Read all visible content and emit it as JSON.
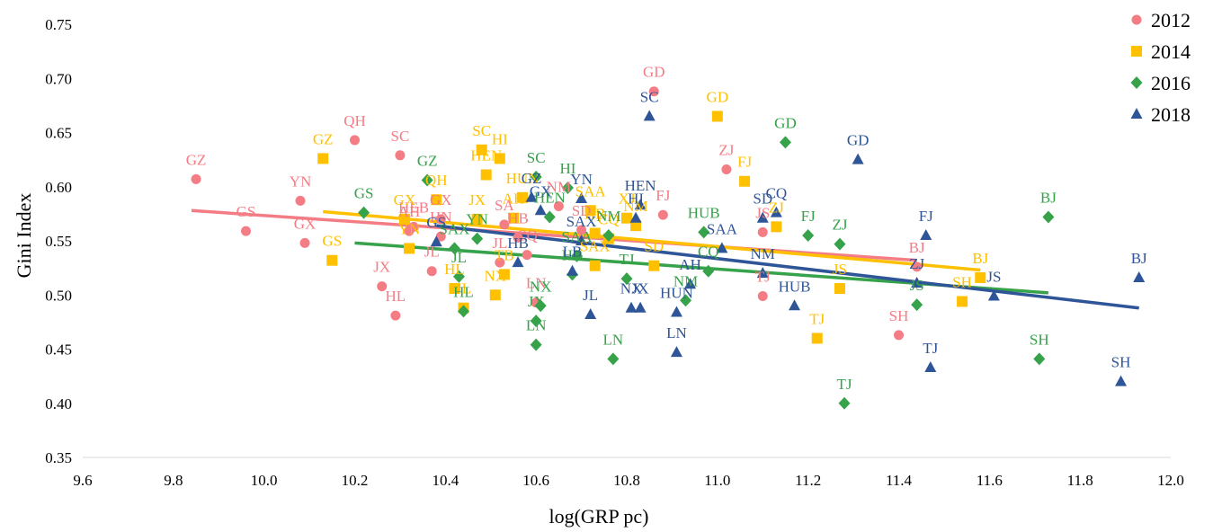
{
  "chart_data": {
    "type": "scatter",
    "xlabel": "log(GRP pc)",
    "ylabel": "Gini Index",
    "xlim": [
      9.6,
      12.0
    ],
    "ylim": [
      0.35,
      0.75
    ],
    "xticks": [
      "9.6",
      "9.8",
      "10.0",
      "10.2",
      "10.4",
      "10.6",
      "10.8",
      "11.0",
      "11.2",
      "11.4",
      "11.6",
      "11.8",
      "12.0"
    ],
    "yticks": [
      "0.35",
      "0.40",
      "0.45",
      "0.50",
      "0.55",
      "0.60",
      "0.65",
      "0.70",
      "0.75"
    ],
    "legend_position": "top-right",
    "series": [
      {
        "name": "2012",
        "color": "#f47c85",
        "marker": "circle",
        "trendline": {
          "x": [
            9.84,
            11.44
          ],
          "y": [
            0.578,
            0.532
          ]
        },
        "points": [
          {
            "label": "GZ",
            "x": 9.85,
            "y": 0.607
          },
          {
            "label": "GS",
            "x": 9.96,
            "y": 0.559
          },
          {
            "label": "YN",
            "x": 10.08,
            "y": 0.587
          },
          {
            "label": "GX",
            "x": 10.09,
            "y": 0.548
          },
          {
            "label": "QH",
            "x": 10.2,
            "y": 0.643
          },
          {
            "label": "SC",
            "x": 10.3,
            "y": 0.629
          },
          {
            "label": "JX",
            "x": 10.26,
            "y": 0.508
          },
          {
            "label": "HL",
            "x": 10.29,
            "y": 0.481
          },
          {
            "label": "HEB",
            "x": 10.33,
            "y": 0.563
          },
          {
            "label": "AH",
            "x": 10.32,
            "y": 0.559
          },
          {
            "label": "GX",
            "x": 10.39,
            "y": 0.57
          },
          {
            "label": "JL",
            "x": 10.37,
            "y": 0.522
          },
          {
            "label": "HN",
            "x": 10.39,
            "y": 0.554
          },
          {
            "label": "SA",
            "x": 10.53,
            "y": 0.565
          },
          {
            "label": "HB",
            "x": 10.56,
            "y": 0.553
          },
          {
            "label": "JL",
            "x": 10.52,
            "y": 0.53
          },
          {
            "label": "CQ",
            "x": 10.58,
            "y": 0.537
          },
          {
            "label": "LN",
            "x": 10.6,
            "y": 0.493
          },
          {
            "label": "NM",
            "x": 10.65,
            "y": 0.582
          },
          {
            "label": "SD",
            "x": 10.7,
            "y": 0.56
          },
          {
            "label": "GD",
            "x": 10.86,
            "y": 0.688
          },
          {
            "label": "FJ",
            "x": 10.88,
            "y": 0.574
          },
          {
            "label": "ZJ",
            "x": 11.02,
            "y": 0.616
          },
          {
            "label": "JS",
            "x": 11.1,
            "y": 0.558
          },
          {
            "label": "TJ",
            "x": 11.1,
            "y": 0.499
          },
          {
            "label": "BJ",
            "x": 11.44,
            "y": 0.526
          },
          {
            "label": "SH",
            "x": 11.4,
            "y": 0.463
          }
        ]
      },
      {
        "name": "2014",
        "color": "#ffc000",
        "marker": "square",
        "trendline": {
          "x": [
            10.13,
            11.58
          ],
          "y": [
            0.577,
            0.523
          ]
        },
        "points": [
          {
            "label": "GZ",
            "x": 10.13,
            "y": 0.626
          },
          {
            "label": "GS",
            "x": 10.15,
            "y": 0.532
          },
          {
            "label": "GX",
            "x": 10.31,
            "y": 0.57
          },
          {
            "label": "YN",
            "x": 10.32,
            "y": 0.543
          },
          {
            "label": "QH",
            "x": 10.38,
            "y": 0.588
          },
          {
            "label": "HL",
            "x": 10.42,
            "y": 0.506
          },
          {
            "label": "JL",
            "x": 10.44,
            "y": 0.488
          },
          {
            "label": "SC",
            "x": 10.48,
            "y": 0.634
          },
          {
            "label": "HEN",
            "x": 10.49,
            "y": 0.611
          },
          {
            "label": "JX",
            "x": 10.47,
            "y": 0.57
          },
          {
            "label": "HI",
            "x": 10.52,
            "y": 0.626
          },
          {
            "label": "HUN",
            "x": 10.57,
            "y": 0.59
          },
          {
            "label": "AH",
            "x": 10.55,
            "y": 0.571
          },
          {
            "label": "NX",
            "x": 10.51,
            "y": 0.5
          },
          {
            "label": "TB",
            "x": 10.53,
            "y": 0.519
          },
          {
            "label": "SAA",
            "x": 10.72,
            "y": 0.578
          },
          {
            "label": "XJ",
            "x": 10.8,
            "y": 0.571
          },
          {
            "label": "NM",
            "x": 10.82,
            "y": 0.564
          },
          {
            "label": "CQ",
            "x": 10.76,
            "y": 0.552
          },
          {
            "label": "SAX",
            "x": 10.73,
            "y": 0.527
          },
          {
            "label": "SD",
            "x": 10.86,
            "y": 0.527
          },
          {
            "label": "HB",
            "x": 10.73,
            "y": 0.557
          },
          {
            "label": "GD",
            "x": 11.0,
            "y": 0.665
          },
          {
            "label": "FJ",
            "x": 11.06,
            "y": 0.605
          },
          {
            "label": "ZJ",
            "x": 11.13,
            "y": 0.563
          },
          {
            "label": "JS",
            "x": 11.27,
            "y": 0.506
          },
          {
            "label": "TJ",
            "x": 11.22,
            "y": 0.46
          },
          {
            "label": "BJ",
            "x": 11.58,
            "y": 0.516
          },
          {
            "label": "SH",
            "x": 11.54,
            "y": 0.494
          }
        ]
      },
      {
        "name": "2016",
        "color": "#36a24a",
        "marker": "diamond",
        "trendline": {
          "x": [
            10.2,
            11.73
          ],
          "y": [
            0.548,
            0.502
          ]
        },
        "points": [
          {
            "label": "GS",
            "x": 10.22,
            "y": 0.576
          },
          {
            "label": "GZ",
            "x": 10.36,
            "y": 0.606
          },
          {
            "label": "YN",
            "x": 10.47,
            "y": 0.552
          },
          {
            "label": "SAX",
            "x": 10.42,
            "y": 0.543
          },
          {
            "label": "JL",
            "x": 10.43,
            "y": 0.517
          },
          {
            "label": "HL",
            "x": 10.44,
            "y": 0.485
          },
          {
            "label": "SC",
            "x": 10.6,
            "y": 0.609
          },
          {
            "label": "HEN",
            "x": 10.63,
            "y": 0.572
          },
          {
            "label": "HI",
            "x": 10.67,
            "y": 0.599
          },
          {
            "label": "NX",
            "x": 10.61,
            "y": 0.49
          },
          {
            "label": "JX",
            "x": 10.6,
            "y": 0.476
          },
          {
            "label": "LN",
            "x": 10.6,
            "y": 0.454
          },
          {
            "label": "SAA",
            "x": 10.69,
            "y": 0.536
          },
          {
            "label": "HB",
            "x": 10.68,
            "y": 0.519
          },
          {
            "label": "NM",
            "x": 10.76,
            "y": 0.555
          },
          {
            "label": "TJ",
            "x": 10.8,
            "y": 0.515
          },
          {
            "label": "LN",
            "x": 10.77,
            "y": 0.441
          },
          {
            "label": "HUB",
            "x": 10.97,
            "y": 0.558
          },
          {
            "label": "CQ",
            "x": 10.98,
            "y": 0.522
          },
          {
            "label": "NM",
            "x": 10.93,
            "y": 0.495
          },
          {
            "label": "GD",
            "x": 11.15,
            "y": 0.641
          },
          {
            "label": "FJ",
            "x": 11.2,
            "y": 0.555
          },
          {
            "label": "ZJ",
            "x": 11.27,
            "y": 0.547
          },
          {
            "label": "JS",
            "x": 11.44,
            "y": 0.491
          },
          {
            "label": "TJ",
            "x": 11.28,
            "y": 0.4
          },
          {
            "label": "BJ",
            "x": 11.73,
            "y": 0.572
          },
          {
            "label": "SH",
            "x": 11.71,
            "y": 0.441
          }
        ]
      },
      {
        "name": "2018",
        "color": "#2e5597",
        "marker": "triangle",
        "trendline": {
          "x": [
            10.38,
            11.93
          ],
          "y": [
            0.564,
            0.488
          ]
        },
        "points": [
          {
            "label": "GS",
            "x": 10.38,
            "y": 0.549
          },
          {
            "label": "GZ",
            "x": 10.59,
            "y": 0.59
          },
          {
            "label": "GX",
            "x": 10.61,
            "y": 0.578
          },
          {
            "label": "HB",
            "x": 10.56,
            "y": 0.53
          },
          {
            "label": "YN",
            "x": 10.7,
            "y": 0.589
          },
          {
            "label": "SAX",
            "x": 10.7,
            "y": 0.55
          },
          {
            "label": "HEN",
            "x": 10.83,
            "y": 0.583
          },
          {
            "label": "HI",
            "x": 10.82,
            "y": 0.571
          },
          {
            "label": "LB",
            "x": 10.68,
            "y": 0.522
          },
          {
            "label": "JL",
            "x": 10.72,
            "y": 0.482
          },
          {
            "label": "NX",
            "x": 10.81,
            "y": 0.488
          },
          {
            "label": "JX",
            "x": 10.83,
            "y": 0.488
          },
          {
            "label": "SC",
            "x": 10.85,
            "y": 0.665
          },
          {
            "label": "HUN",
            "x": 10.91,
            "y": 0.484
          },
          {
            "label": "LN",
            "x": 10.91,
            "y": 0.447
          },
          {
            "label": "AH",
            "x": 10.94,
            "y": 0.51
          },
          {
            "label": "SAA",
            "x": 11.01,
            "y": 0.543
          },
          {
            "label": "SD",
            "x": 11.1,
            "y": 0.571
          },
          {
            "label": "CQ",
            "x": 11.13,
            "y": 0.576
          },
          {
            "label": "NM",
            "x": 11.1,
            "y": 0.52
          },
          {
            "label": "HUB",
            "x": 11.17,
            "y": 0.49
          },
          {
            "label": "GD",
            "x": 11.31,
            "y": 0.625
          },
          {
            "label": "FJ",
            "x": 11.46,
            "y": 0.555
          },
          {
            "label": "ZJ",
            "x": 11.44,
            "y": 0.511
          },
          {
            "label": "JS",
            "x": 11.61,
            "y": 0.499
          },
          {
            "label": "TJ",
            "x": 11.47,
            "y": 0.433
          },
          {
            "label": "BJ",
            "x": 11.93,
            "y": 0.516
          },
          {
            "label": "SH",
            "x": 11.89,
            "y": 0.42
          }
        ]
      }
    ]
  }
}
